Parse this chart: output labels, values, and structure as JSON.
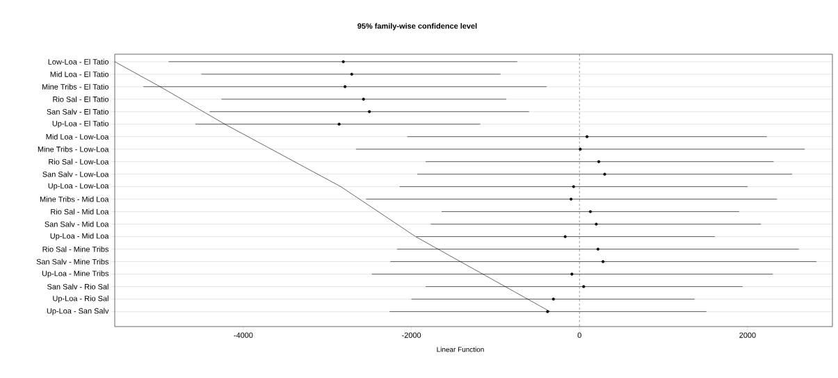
{
  "chart_data": {
    "type": "scatter",
    "orientation": "horizontal",
    "title": "95% family-wise confidence level",
    "xlabel": "Linear Function",
    "categories": [
      "Low-Loa - El Tatio",
      "Mid Loa - El Tatio",
      "Mine Tribs - El Tatio",
      "Rio Sal - El Tatio",
      "San Salv - El Tatio",
      "Up-Loa - El Tatio",
      "Mid Loa - Low-Loa",
      "Mine Tribs - Low-Loa",
      "Rio Sal - Low-Loa",
      "San Salv - Low-Loa",
      "Up-Loa - Low-Loa",
      "Mine Tribs - Mid Loa",
      "Rio Sal - Mid Loa",
      "San Salv - Mid Loa",
      "Up-Loa - Mid Loa",
      "Rio Sal - Mine Tribs",
      "San Salv - Mine Tribs",
      "Up-Loa - Mine Tribs",
      "San Salv - Rio Sal",
      "Up-Loa - Rio Sal",
      "Up-Loa - San Salv"
    ],
    "series": [
      {
        "color": "#000000",
        "values": [
          -2810,
          -2710,
          -2790,
          -2570,
          -2500,
          -2860,
          90,
          10,
          230,
          300,
          -70,
          -100,
          130,
          200,
          -170,
          220,
          280,
          -90,
          50,
          -310,
          -380
        ],
        "errors": [
          [
            -4890,
            -740
          ],
          [
            -4500,
            -940
          ],
          [
            -5190,
            -390
          ],
          [
            -4260,
            -870
          ],
          [
            -4400,
            -600
          ],
          [
            -4570,
            -1180
          ],
          [
            -2050,
            2230
          ],
          [
            -2660,
            2680
          ],
          [
            -1830,
            2310
          ],
          [
            -1930,
            2530
          ],
          [
            -2140,
            2000
          ],
          [
            -2540,
            2350
          ],
          [
            -1640,
            1900
          ],
          [
            -1770,
            2160
          ],
          [
            -1940,
            1610
          ],
          [
            -2170,
            2610
          ],
          [
            -2250,
            2820
          ],
          [
            -2470,
            2300
          ],
          [
            -1830,
            1940
          ],
          [
            -2000,
            1370
          ],
          [
            -2260,
            1510
          ]
        ]
      },
      {
        "type": "line",
        "color": "#000000",
        "values": [
          -5530,
          null,
          -4990,
          null,
          null,
          -4220,
          null,
          null,
          null,
          null,
          -2840,
          null,
          null,
          null,
          -1950,
          null,
          null,
          null,
          null,
          null,
          -350
        ]
      }
    ],
    "xlim": [
      -5530,
      3010
    ],
    "xticks": [
      -4000,
      -2000,
      0,
      2000
    ],
    "grid": "y",
    "ref_lines": [
      {
        "axis": "x",
        "value": 0,
        "line_style": "dashed",
        "color": "#555555"
      }
    ]
  }
}
